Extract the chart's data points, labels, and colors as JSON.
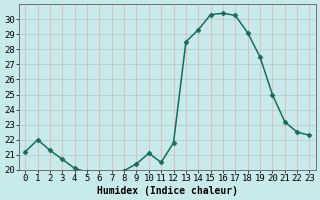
{
  "x": [
    0,
    1,
    2,
    3,
    4,
    5,
    6,
    7,
    8,
    9,
    10,
    11,
    12,
    13,
    14,
    15,
    16,
    17,
    18,
    19,
    20,
    21,
    22,
    23
  ],
  "y": [
    21.2,
    22.0,
    21.3,
    20.7,
    20.1,
    19.85,
    19.75,
    19.7,
    19.95,
    20.4,
    21.1,
    20.5,
    21.8,
    28.5,
    29.3,
    30.3,
    30.4,
    30.25,
    29.1,
    27.5,
    25.0,
    23.2,
    22.5,
    22.3
  ],
  "line_color": "#1a6b5a",
  "marker": "D",
  "marker_size": 2.5,
  "bg_color": "#c8eaea",
  "grid_color_h": "#b0c8c8",
  "grid_color_v": "#e0b0b0",
  "xlabel": "Humidex (Indice chaleur)",
  "xlim": [
    -0.5,
    23.5
  ],
  "ylim": [
    20,
    31
  ],
  "yticks": [
    20,
    21,
    22,
    23,
    24,
    25,
    26,
    27,
    28,
    29,
    30
  ],
  "xticks": [
    0,
    1,
    2,
    3,
    4,
    5,
    6,
    7,
    8,
    9,
    10,
    11,
    12,
    13,
    14,
    15,
    16,
    17,
    18,
    19,
    20,
    21,
    22,
    23
  ],
  "xlabel_fontsize": 7,
  "tick_fontsize": 6.5,
  "linewidth": 1.1,
  "spine_color": "#707070"
}
